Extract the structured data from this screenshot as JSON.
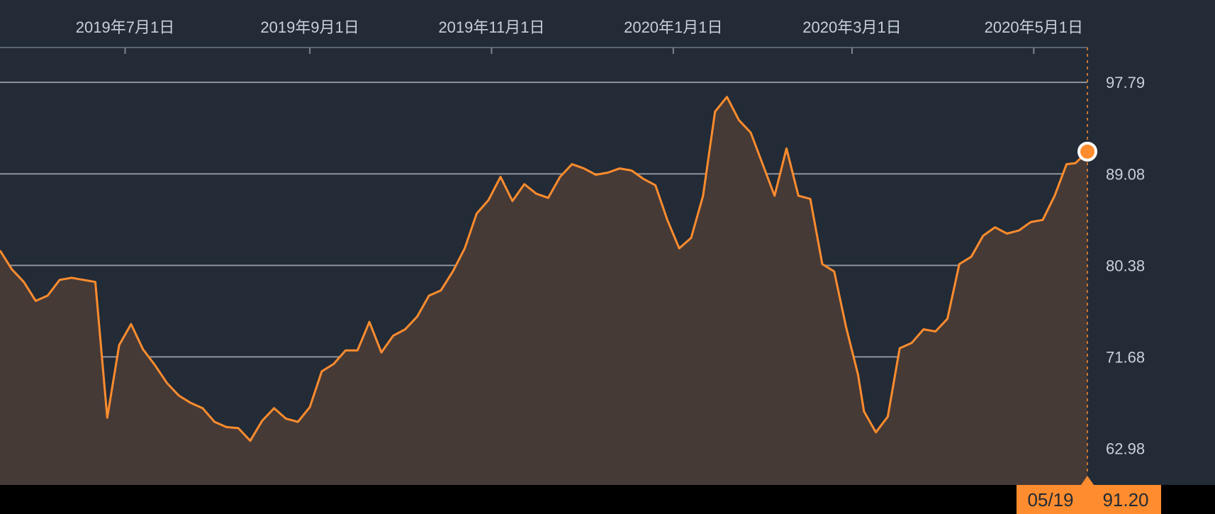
{
  "colors": {
    "panel_bg": "#222b36",
    "footer_bg": "#000000",
    "series": "#ff8c2e",
    "area_fill": "#463a37",
    "grid": "#8f959d",
    "text": "#c9d0d8",
    "readout_bg": "#ff8c2e",
    "readout_text": "#1f2a35"
  },
  "readout": {
    "date": "05/19",
    "value": "91.20"
  },
  "chart_data": {
    "type": "area",
    "title": "",
    "xlabel": "",
    "ylabel": "",
    "x_ticks": [
      "2019年7月1日",
      "2019年9月1日",
      "2019年11月1日",
      "2020年1月1日",
      "2020年3月1日",
      "2020年5月1日"
    ],
    "x_tick_dates": [
      "2019-07-01",
      "2019-09-01",
      "2019-11-01",
      "2020-01-01",
      "2020-03-01",
      "2020-05-01"
    ],
    "y_ticks": [
      "97.79",
      "89.08",
      "80.38",
      "71.68",
      "62.98"
    ],
    "y_tick_values": [
      97.79,
      89.08,
      80.38,
      71.68,
      62.98
    ],
    "xlim": [
      "2019-05-20",
      "2020-05-19"
    ],
    "ylim": [
      59.5,
      101.1
    ],
    "grid": true,
    "legend": "none",
    "series": [
      {
        "x": [
          "2019-05-20",
          "2019-05-24",
          "2019-05-28",
          "2019-06-01",
          "2019-06-05",
          "2019-06-09",
          "2019-06-13",
          "2019-06-17",
          "2019-06-21",
          "2019-06-25",
          "2019-06-29",
          "2019-07-03",
          "2019-07-07",
          "2019-07-11",
          "2019-07-15",
          "2019-07-19",
          "2019-07-23",
          "2019-07-27",
          "2019-07-31",
          "2019-08-04",
          "2019-08-08",
          "2019-08-12",
          "2019-08-16",
          "2019-08-20",
          "2019-08-24",
          "2019-08-28",
          "2019-09-01",
          "2019-09-05",
          "2019-09-09",
          "2019-09-13",
          "2019-09-17",
          "2019-09-21",
          "2019-09-25",
          "2019-09-29",
          "2019-10-03",
          "2019-10-07",
          "2019-10-11",
          "2019-10-15",
          "2019-10-19",
          "2019-10-23",
          "2019-10-27",
          "2019-10-31",
          "2019-11-04",
          "2019-11-08",
          "2019-11-12",
          "2019-11-16",
          "2019-11-20",
          "2019-11-24",
          "2019-11-28",
          "2019-12-02",
          "2019-12-06",
          "2019-12-10",
          "2019-12-14",
          "2019-12-18",
          "2019-12-22",
          "2019-12-26",
          "2019-12-30",
          "2020-01-03",
          "2020-01-07",
          "2020-01-11",
          "2020-01-15",
          "2020-01-19",
          "2020-01-23",
          "2020-01-27",
          "2020-01-31",
          "2020-02-04",
          "2020-02-08",
          "2020-02-12",
          "2020-02-16",
          "2020-02-20",
          "2020-02-24",
          "2020-02-28",
          "2020-03-03",
          "2020-03-05",
          "2020-03-09",
          "2020-03-13",
          "2020-03-17",
          "2020-03-21",
          "2020-03-25",
          "2020-03-29",
          "2020-04-02",
          "2020-04-06",
          "2020-04-10",
          "2020-04-14",
          "2020-04-18",
          "2020-04-22",
          "2020-04-26",
          "2020-04-30",
          "2020-05-04",
          "2020-05-08",
          "2020-05-12",
          "2020-05-15",
          "2020-05-19"
        ],
        "y": [
          81.8,
          80.0,
          78.8,
          77.0,
          77.5,
          79.0,
          79.2,
          79.0,
          78.8,
          65.9,
          72.8,
          74.8,
          72.4,
          70.9,
          69.2,
          68.0,
          67.3,
          66.8,
          65.5,
          65.0,
          64.9,
          63.7,
          65.6,
          66.8,
          65.8,
          65.5,
          66.9,
          70.3,
          71.0,
          72.3,
          72.3,
          75.0,
          72.1,
          73.7,
          74.3,
          75.5,
          77.5,
          78.0,
          79.8,
          82.0,
          85.3,
          86.6,
          88.8,
          86.5,
          88.1,
          87.2,
          86.8,
          88.8,
          90.0,
          89.6,
          89.0,
          89.2,
          89.6,
          89.4,
          88.6,
          88.0,
          84.7,
          82.0,
          83.0,
          87.0,
          95.0,
          96.4,
          94.2,
          93.0,
          90.0,
          87.0,
          91.5,
          87.0,
          86.7,
          80.5,
          79.8,
          74.5,
          70.0,
          66.5,
          64.5,
          66.0,
          72.5,
          73.0,
          74.3,
          74.1,
          75.3,
          80.5,
          81.2,
          83.2,
          84.0,
          83.4,
          83.7,
          84.5,
          84.7,
          87.0,
          90.0,
          90.1,
          91.2
        ]
      }
    ]
  }
}
